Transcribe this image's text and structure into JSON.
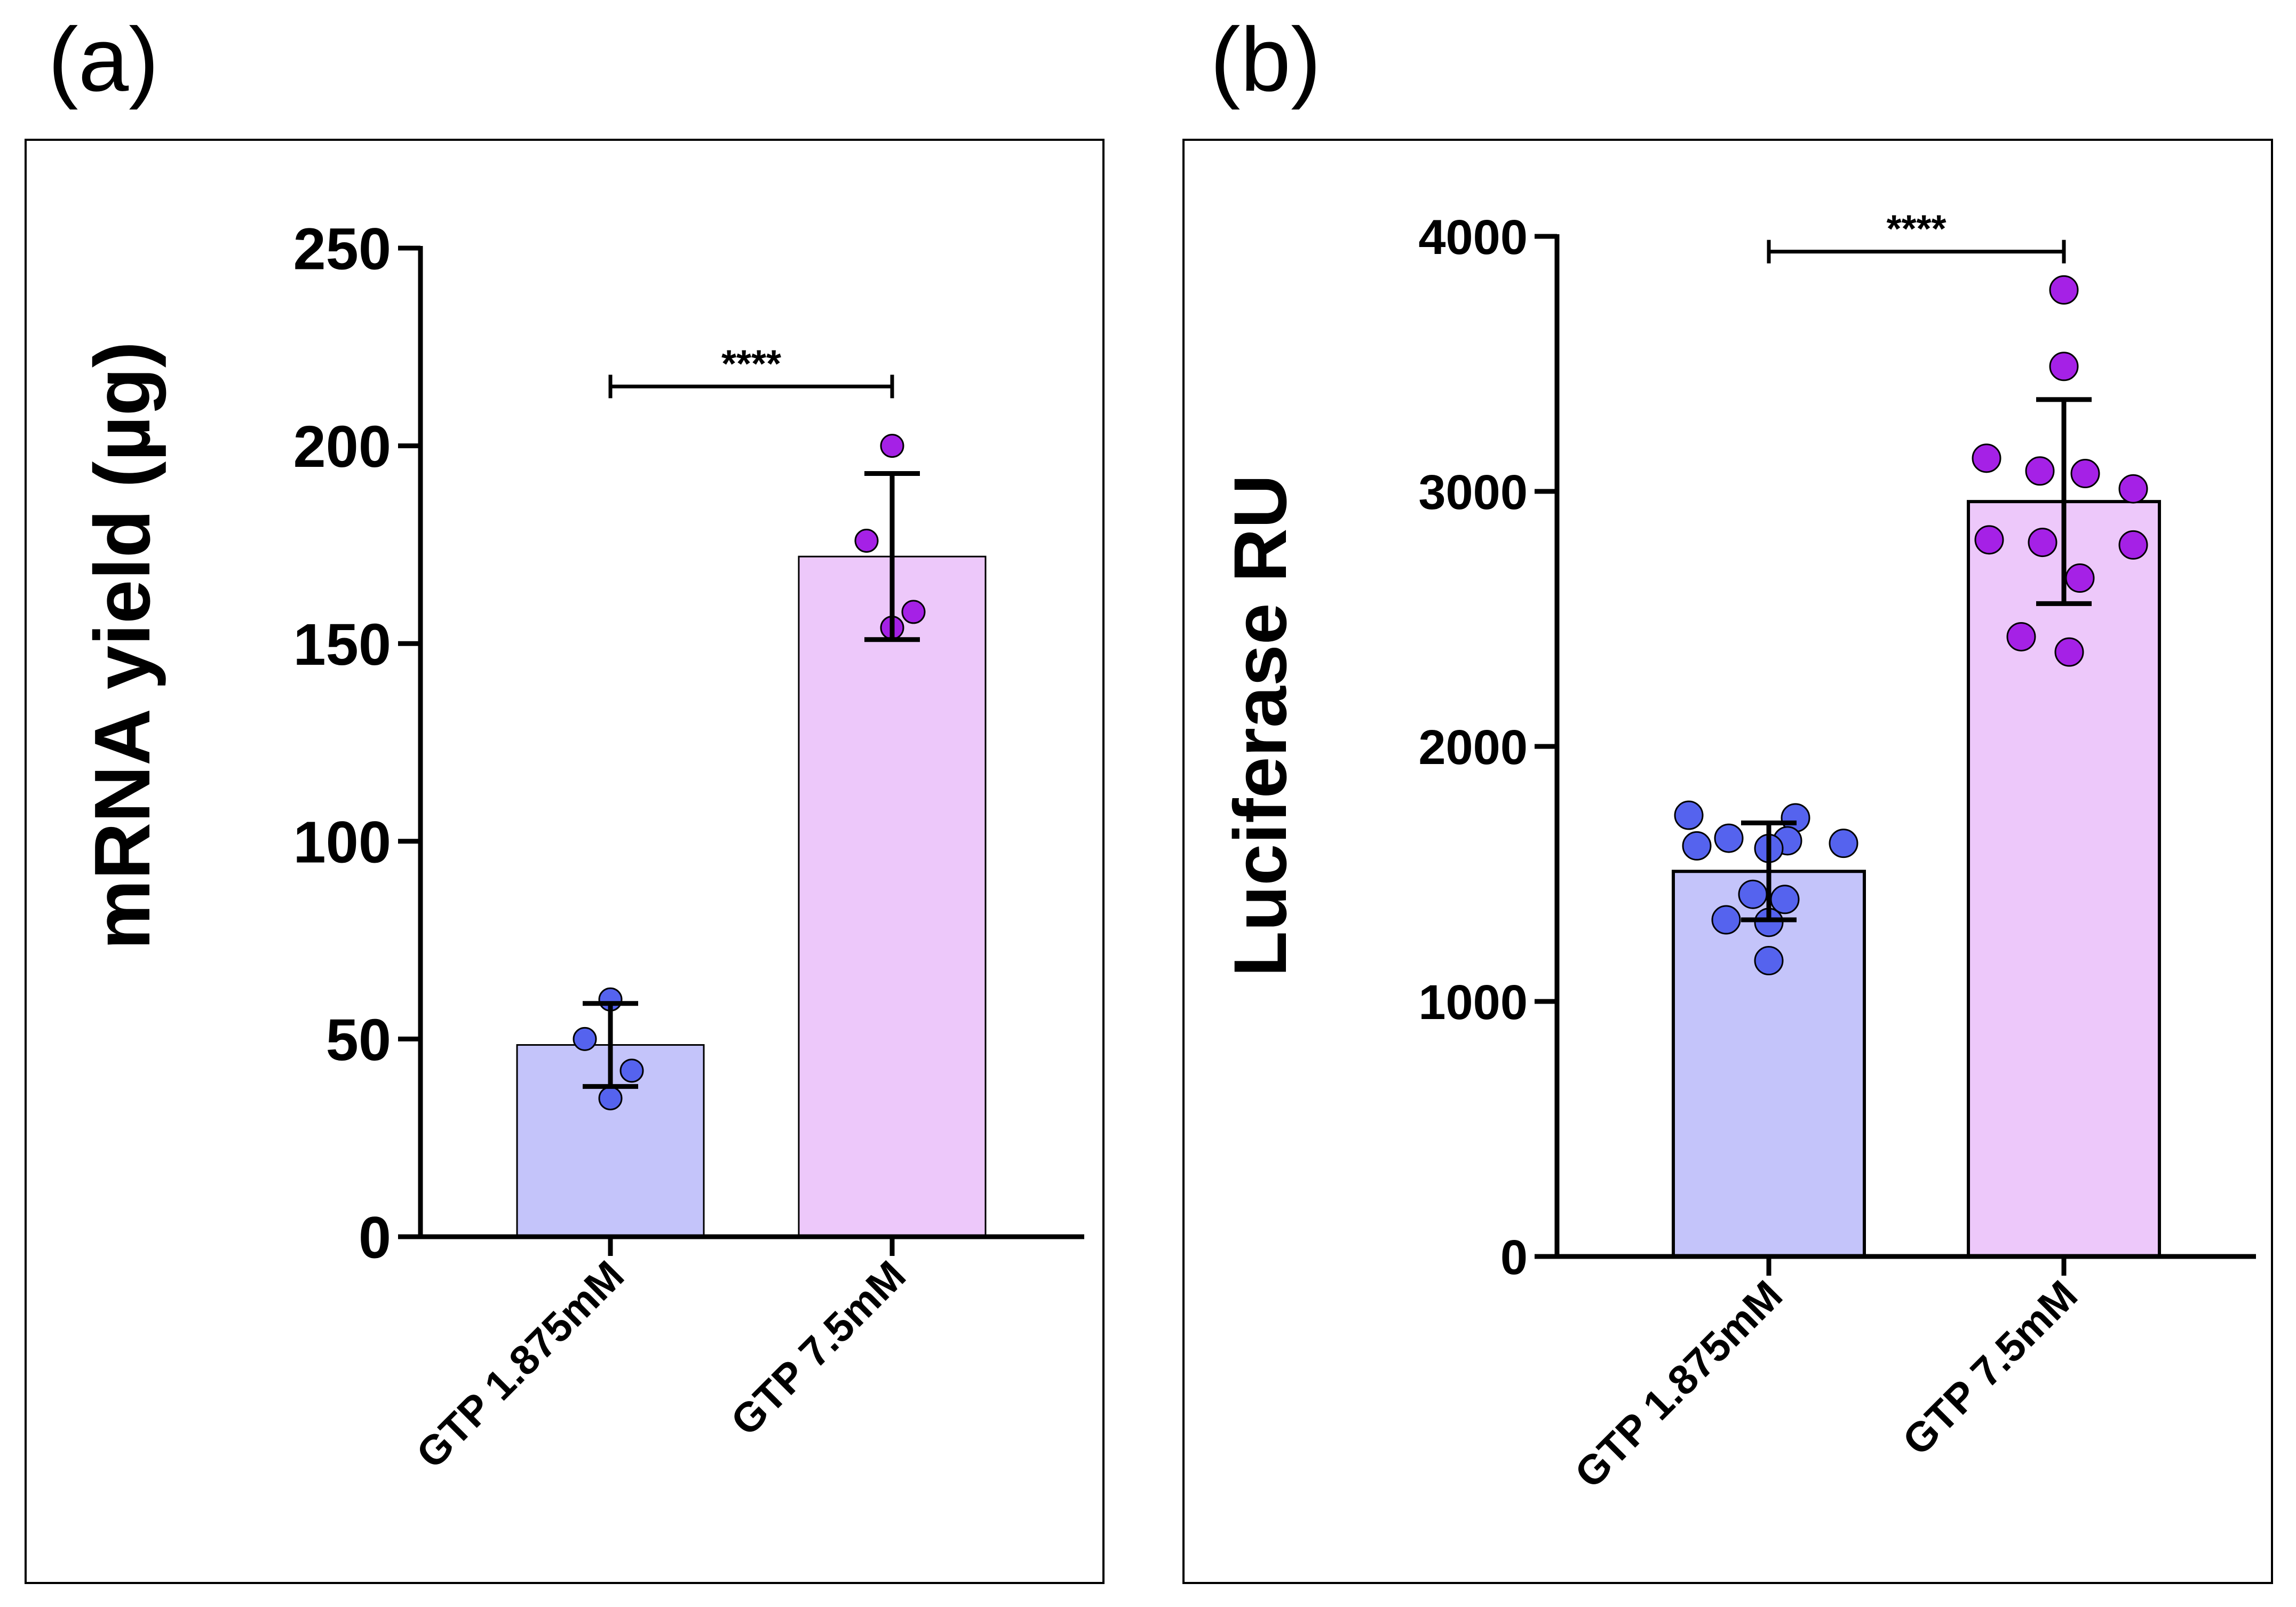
{
  "panels": [
    {
      "label": "(a)",
      "chart_data": {
        "type": "bar",
        "ylabel": "mRNA yield (µg)",
        "xlabel": "",
        "ylim": [
          0,
          250
        ],
        "yticks": [
          "0",
          "50",
          "100",
          "150",
          "200",
          "250"
        ],
        "categories": [
          "GTP 1.875mM",
          "GTP 7.5mM"
        ],
        "values": [
          48.5,
          172
        ],
        "errors_sd": [
          10.5,
          21
        ],
        "points": [
          [
            60,
            50,
            42,
            35
          ],
          [
            200,
            176,
            158,
            154
          ]
        ],
        "bar_colors": [
          "#c4c4fa",
          "#edc8fa"
        ],
        "point_colors": [
          "#5563ee",
          "#a521e6"
        ],
        "significance": {
          "from": 0,
          "to": 1,
          "y": 215,
          "label": "****"
        }
      }
    },
    {
      "label": "(b)",
      "chart_data": {
        "type": "bar",
        "ylabel": "Luciferase RU",
        "xlabel": "",
        "ylim": [
          0,
          4000
        ],
        "yticks": [
          "0",
          "1000",
          "2000",
          "3000",
          "4000"
        ],
        "categories": [
          "GTP 1.875mM",
          "GTP 7.5mM"
        ],
        "values": [
          1510,
          2960
        ],
        "errors_sd": [
          190,
          400
        ],
        "points": [
          [
            1730,
            1720,
            1640,
            1630,
            1620,
            1610,
            1600,
            1420,
            1400,
            1320,
            1310,
            1160
          ],
          [
            3790,
            3490,
            3130,
            3080,
            3070,
            3010,
            2810,
            2800,
            2790,
            2660,
            2430,
            2370
          ]
        ],
        "bar_colors": [
          "#c4c4fa",
          "#edc8fa"
        ],
        "point_colors": [
          "#5563ee",
          "#a521e6"
        ],
        "significance": {
          "from": 0,
          "to": 1,
          "y": 3940,
          "label": "****"
        }
      }
    }
  ]
}
